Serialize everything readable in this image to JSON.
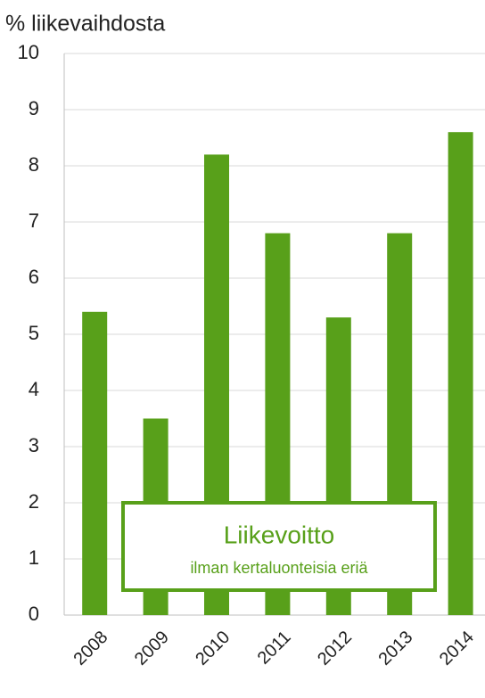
{
  "chart_data": {
    "type": "bar",
    "title": "% liikevaihdosta",
    "categories": [
      "2008",
      "2009",
      "2010",
      "2011",
      "2012",
      "2013",
      "2014"
    ],
    "values": [
      5.4,
      3.5,
      8.2,
      6.8,
      5.3,
      6.8,
      8.6
    ],
    "color": "#58a01a",
    "ylim": [
      0,
      10
    ],
    "yticks": [
      0,
      1,
      2,
      3,
      4,
      5,
      6,
      7,
      8,
      9,
      10
    ],
    "grid": true,
    "annotations": [
      "Liikevoitto",
      "ilman kertaluonteisia eriä"
    ]
  }
}
